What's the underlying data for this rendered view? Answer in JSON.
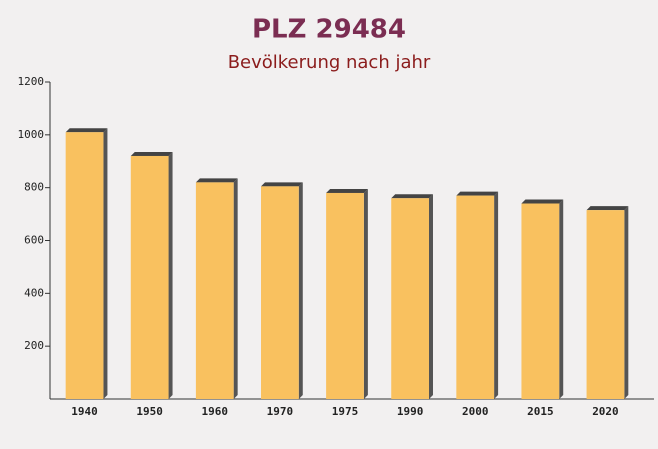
{
  "chart_data": {
    "type": "bar",
    "title": "PLZ 29484",
    "subtitle": "Bevölkerung nach jahr",
    "categories": [
      "1940",
      "1950",
      "1960",
      "1970",
      "1975",
      "1990",
      "2000",
      "2015",
      "2020"
    ],
    "values": [
      1010,
      920,
      820,
      805,
      780,
      760,
      770,
      740,
      715
    ],
    "color": "#f9c15f",
    "ylim": [
      0,
      1200
    ],
    "yticks": [
      200,
      400,
      600,
      800,
      1000,
      1200
    ],
    "grid": false
  }
}
